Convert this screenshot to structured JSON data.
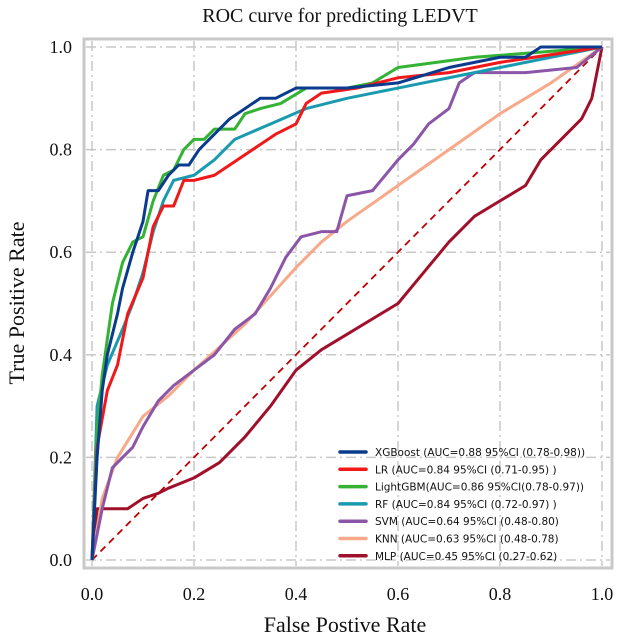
{
  "chart_data": {
    "type": "line",
    "title": "ROC curve for predicting LEDVT",
    "xlabel": "False Postive Rate",
    "ylabel": "True Positive Rate",
    "xlim": [
      0,
      1
    ],
    "ylim": [
      0,
      1
    ],
    "xticks": [
      "0.0",
      "0.2",
      "0.4",
      "0.6",
      "0.8",
      "1.0"
    ],
    "yticks": [
      "0.0",
      "0.2",
      "0.4",
      "0.6",
      "0.8",
      "1.0"
    ],
    "grid": true,
    "legend_position": "bottom-right",
    "diagonal": {
      "color": "#c00000",
      "style": "dashed"
    },
    "series": [
      {
        "name": "XGBoost",
        "legend": "XGBoost  (AUC=0.88  95%CI  (0.78-0.98))",
        "color": "#0b3b8c",
        "points": [
          [
            0,
            0
          ],
          [
            0.01,
            0.2
          ],
          [
            0.02,
            0.33
          ],
          [
            0.03,
            0.4
          ],
          [
            0.05,
            0.48
          ],
          [
            0.06,
            0.53
          ],
          [
            0.08,
            0.6
          ],
          [
            0.1,
            0.66
          ],
          [
            0.11,
            0.72
          ],
          [
            0.13,
            0.72
          ],
          [
            0.15,
            0.75
          ],
          [
            0.17,
            0.77
          ],
          [
            0.19,
            0.77
          ],
          [
            0.21,
            0.8
          ],
          [
            0.24,
            0.83
          ],
          [
            0.27,
            0.86
          ],
          [
            0.3,
            0.88
          ],
          [
            0.33,
            0.9
          ],
          [
            0.36,
            0.9
          ],
          [
            0.4,
            0.92
          ],
          [
            0.5,
            0.92
          ],
          [
            0.6,
            0.93
          ],
          [
            0.7,
            0.96
          ],
          [
            0.8,
            0.98
          ],
          [
            0.85,
            0.98
          ],
          [
            0.88,
            1.0
          ],
          [
            1,
            1
          ]
        ]
      },
      {
        "name": "LR",
        "legend": "LR  (AUC=0.84  95%CI  (0.71-0.95)  )",
        "color": "#f01818",
        "points": [
          [
            0,
            0
          ],
          [
            0.01,
            0.22
          ],
          [
            0.03,
            0.33
          ],
          [
            0.05,
            0.38
          ],
          [
            0.07,
            0.48
          ],
          [
            0.1,
            0.55
          ],
          [
            0.12,
            0.65
          ],
          [
            0.14,
            0.69
          ],
          [
            0.16,
            0.69
          ],
          [
            0.18,
            0.74
          ],
          [
            0.2,
            0.74
          ],
          [
            0.24,
            0.75
          ],
          [
            0.27,
            0.77
          ],
          [
            0.3,
            0.79
          ],
          [
            0.33,
            0.81
          ],
          [
            0.36,
            0.83
          ],
          [
            0.4,
            0.85
          ],
          [
            0.42,
            0.89
          ],
          [
            0.45,
            0.91
          ],
          [
            0.52,
            0.92
          ],
          [
            0.6,
            0.94
          ],
          [
            0.7,
            0.95
          ],
          [
            0.8,
            0.97
          ],
          [
            1,
            1
          ]
        ]
      },
      {
        "name": "LightGBM",
        "legend": "LightGBM(AUC=0.86  95%CI(0.78-0.97))",
        "color": "#33b233",
        "points": [
          [
            0,
            0
          ],
          [
            0.01,
            0.25
          ],
          [
            0.02,
            0.36
          ],
          [
            0.04,
            0.5
          ],
          [
            0.06,
            0.58
          ],
          [
            0.08,
            0.62
          ],
          [
            0.1,
            0.63
          ],
          [
            0.12,
            0.7
          ],
          [
            0.14,
            0.75
          ],
          [
            0.16,
            0.76
          ],
          [
            0.18,
            0.8
          ],
          [
            0.2,
            0.82
          ],
          [
            0.22,
            0.82
          ],
          [
            0.24,
            0.84
          ],
          [
            0.28,
            0.84
          ],
          [
            0.3,
            0.87
          ],
          [
            0.33,
            0.88
          ],
          [
            0.37,
            0.89
          ],
          [
            0.42,
            0.92
          ],
          [
            0.5,
            0.92
          ],
          [
            0.55,
            0.93
          ],
          [
            0.6,
            0.96
          ],
          [
            0.75,
            0.98
          ],
          [
            0.88,
            0.99
          ],
          [
            1,
            1
          ]
        ]
      },
      {
        "name": "RF",
        "legend": "RF      (AUC=0.84  95%CI  (0.72-0.97)  )",
        "color": "#1a9ab0",
        "points": [
          [
            0,
            0
          ],
          [
            0.01,
            0.3
          ],
          [
            0.03,
            0.38
          ],
          [
            0.06,
            0.45
          ],
          [
            0.08,
            0.5
          ],
          [
            0.1,
            0.56
          ],
          [
            0.12,
            0.64
          ],
          [
            0.14,
            0.7
          ],
          [
            0.16,
            0.74
          ],
          [
            0.2,
            0.75
          ],
          [
            0.24,
            0.78
          ],
          [
            0.28,
            0.82
          ],
          [
            0.35,
            0.85
          ],
          [
            0.42,
            0.88
          ],
          [
            0.5,
            0.9
          ],
          [
            0.6,
            0.92
          ],
          [
            0.7,
            0.94
          ],
          [
            0.8,
            0.96
          ],
          [
            0.9,
            0.98
          ],
          [
            1,
            1
          ]
        ]
      },
      {
        "name": "SVM",
        "legend": "SVM  (AUC=0.64  95%CI  (0.48-0.80)",
        "color": "#8b56a8",
        "points": [
          [
            0,
            0
          ],
          [
            0.02,
            0.1
          ],
          [
            0.04,
            0.18
          ],
          [
            0.06,
            0.2
          ],
          [
            0.08,
            0.22
          ],
          [
            0.1,
            0.26
          ],
          [
            0.13,
            0.31
          ],
          [
            0.16,
            0.34
          ],
          [
            0.2,
            0.37
          ],
          [
            0.24,
            0.4
          ],
          [
            0.28,
            0.45
          ],
          [
            0.32,
            0.48
          ],
          [
            0.35,
            0.53
          ],
          [
            0.38,
            0.59
          ],
          [
            0.41,
            0.63
          ],
          [
            0.45,
            0.64
          ],
          [
            0.48,
            0.64
          ],
          [
            0.5,
            0.71
          ],
          [
            0.55,
            0.72
          ],
          [
            0.6,
            0.78
          ],
          [
            0.63,
            0.81
          ],
          [
            0.66,
            0.85
          ],
          [
            0.7,
            0.88
          ],
          [
            0.72,
            0.93
          ],
          [
            0.75,
            0.95
          ],
          [
            0.85,
            0.95
          ],
          [
            0.95,
            0.96
          ],
          [
            1,
            1
          ]
        ]
      },
      {
        "name": "KNN",
        "legend": "KNN  (AUC=0.63  95%CI  (0.48-0.78)",
        "color": "#f7a98a",
        "points": [
          [
            0,
            0
          ],
          [
            0.02,
            0.12
          ],
          [
            0.05,
            0.2
          ],
          [
            0.1,
            0.28
          ],
          [
            0.15,
            0.32
          ],
          [
            0.2,
            0.37
          ],
          [
            0.3,
            0.46
          ],
          [
            0.4,
            0.57
          ],
          [
            0.45,
            0.62
          ],
          [
            0.5,
            0.66
          ],
          [
            0.6,
            0.73
          ],
          [
            0.7,
            0.8
          ],
          [
            0.8,
            0.87
          ],
          [
            0.9,
            0.93
          ],
          [
            1,
            1
          ]
        ]
      },
      {
        "name": "MLP",
        "legend": "MLP (AUC=0.45 95%CI (0.27-0.62)",
        "color": "#a0102a",
        "points": [
          [
            0,
            0
          ],
          [
            0.01,
            0.1
          ],
          [
            0.07,
            0.1
          ],
          [
            0.1,
            0.12
          ],
          [
            0.13,
            0.13
          ],
          [
            0.15,
            0.14
          ],
          [
            0.2,
            0.16
          ],
          [
            0.25,
            0.19
          ],
          [
            0.3,
            0.24
          ],
          [
            0.35,
            0.3
          ],
          [
            0.4,
            0.37
          ],
          [
            0.45,
            0.41
          ],
          [
            0.5,
            0.44
          ],
          [
            0.55,
            0.47
          ],
          [
            0.6,
            0.5
          ],
          [
            0.65,
            0.56
          ],
          [
            0.7,
            0.62
          ],
          [
            0.75,
            0.67
          ],
          [
            0.8,
            0.7
          ],
          [
            0.85,
            0.73
          ],
          [
            0.88,
            0.78
          ],
          [
            0.92,
            0.82
          ],
          [
            0.96,
            0.86
          ],
          [
            0.98,
            0.9
          ],
          [
            1,
            1
          ]
        ]
      }
    ]
  }
}
